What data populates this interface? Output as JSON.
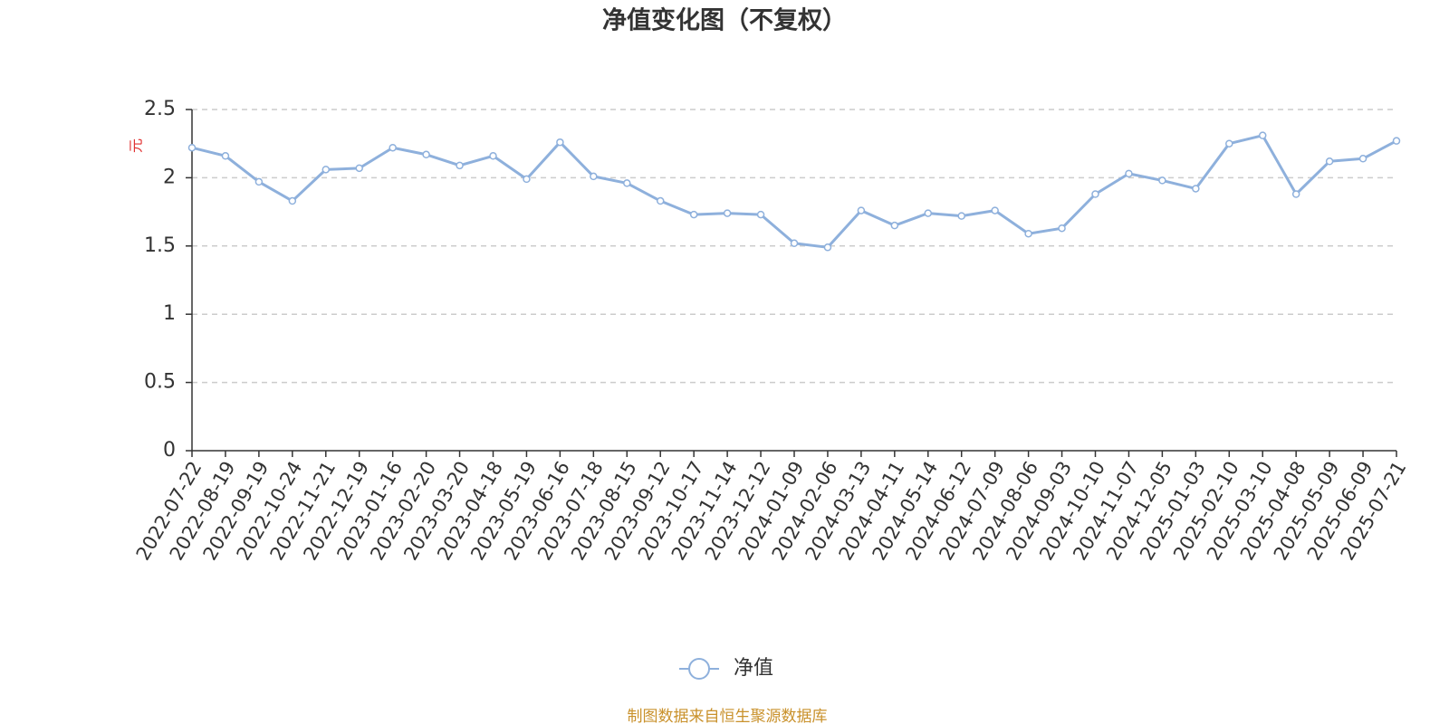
{
  "chart_data": {
    "type": "line",
    "title": "净值变化图（不复权）",
    "y_label": "元",
    "categories": [
      "2022-07-22",
      "2022-08-19",
      "2022-09-19",
      "2022-10-24",
      "2022-11-21",
      "2022-12-19",
      "2023-01-16",
      "2023-02-20",
      "2023-03-20",
      "2023-04-18",
      "2023-05-19",
      "2023-06-16",
      "2023-07-18",
      "2023-08-15",
      "2023-09-12",
      "2023-10-17",
      "2023-11-14",
      "2023-12-12",
      "2024-01-09",
      "2024-02-06",
      "2024-03-13",
      "2024-04-11",
      "2024-05-14",
      "2024-06-12",
      "2024-07-09",
      "2024-08-06",
      "2024-09-03",
      "2024-10-10",
      "2024-11-07",
      "2024-12-05",
      "2025-01-03",
      "2025-02-10",
      "2025-03-10",
      "2025-04-08",
      "2025-05-09",
      "2025-06-09",
      "2025-07-21"
    ],
    "series": [
      {
        "name": "净值",
        "color": "#8eb0dc",
        "values": [
          2.22,
          2.16,
          1.97,
          1.83,
          2.06,
          2.07,
          2.22,
          2.17,
          2.09,
          2.16,
          1.99,
          2.26,
          2.01,
          1.96,
          1.83,
          1.73,
          1.74,
          1.73,
          1.52,
          1.49,
          1.76,
          1.65,
          1.74,
          1.72,
          1.76,
          1.59,
          1.63,
          1.88,
          2.03,
          1.98,
          1.92,
          2.25,
          2.31,
          1.88,
          2.12,
          2.14,
          2.27
        ]
      }
    ],
    "ylim": [
      0,
      2.5
    ],
    "yticks": [
      0,
      0.5,
      1,
      1.5,
      2,
      2.5
    ],
    "grid": true,
    "legend": "bottom",
    "source": "制图数据来自恒生聚源数据库"
  }
}
